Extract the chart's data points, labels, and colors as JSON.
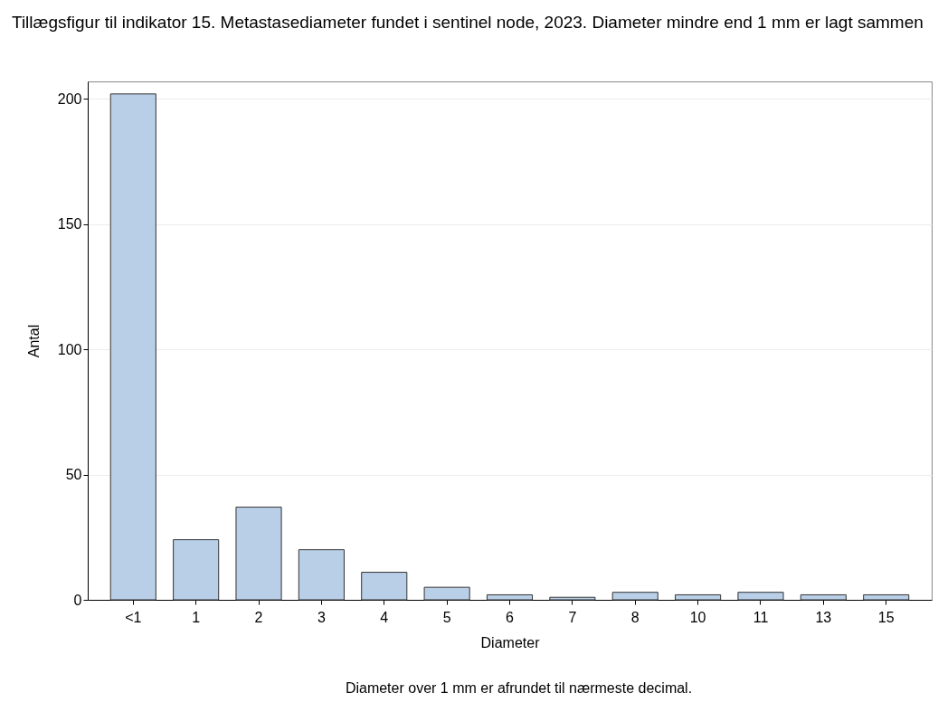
{
  "chart_data": {
    "type": "bar",
    "title": "Tillægsfigur til indikator 15. Metastasediameter fundet i sentinel node, 2023. Diameter mindre end 1 mm er lagt sammen",
    "xlabel": "Diameter",
    "ylabel": "Antal",
    "annotations": [
      "Diameter over 1 mm er afrundet til nærmeste decimal."
    ],
    "categories": [
      "<1",
      "1",
      "2",
      "3",
      "4",
      "5",
      "6",
      "7",
      "8",
      "10",
      "11",
      "13",
      "15"
    ],
    "values": [
      202,
      24,
      37,
      20,
      11,
      5,
      2,
      1,
      3,
      2,
      3,
      2,
      2
    ],
    "color": "#b9cfe7",
    "ylim": [
      0,
      207
    ],
    "yticks": [
      0,
      50,
      100,
      150,
      200
    ],
    "grid": "y"
  }
}
